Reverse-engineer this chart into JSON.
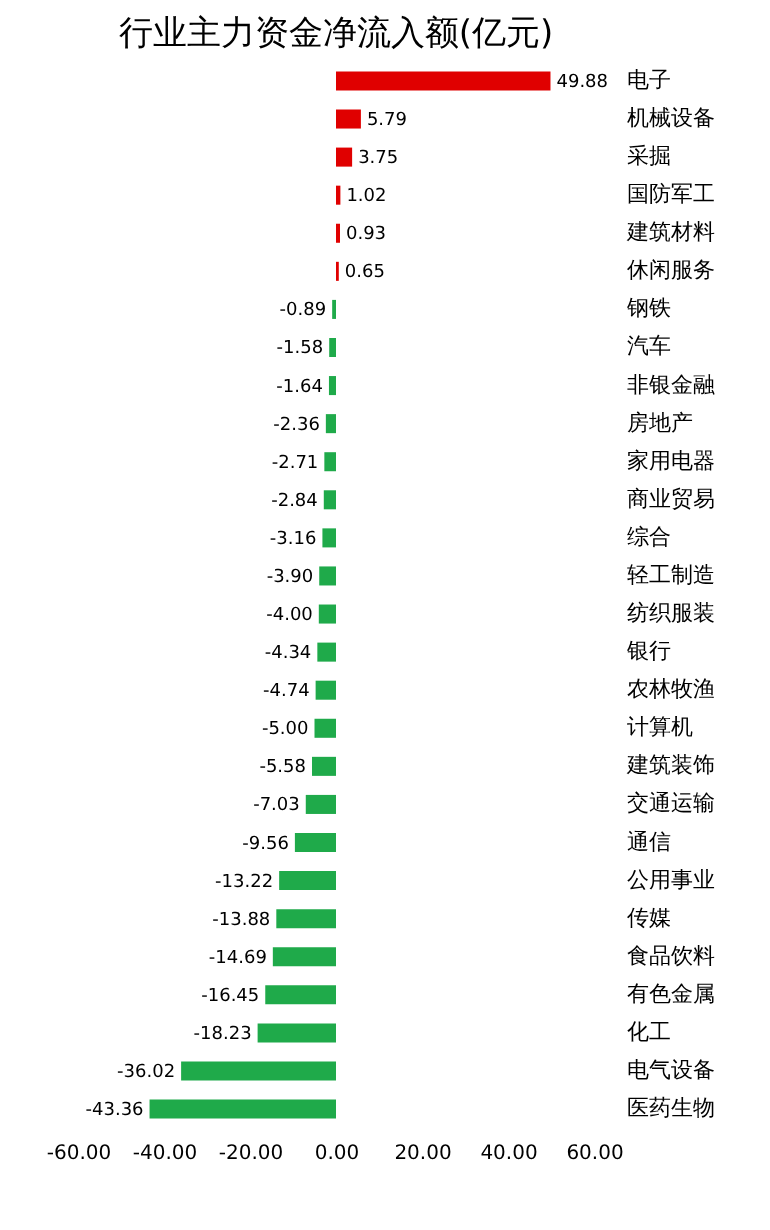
{
  "chart_data": {
    "type": "bar",
    "orientation": "horizontal",
    "title": "行业主力资金净流入额(亿元)",
    "categories": [
      "电子",
      "机械设备",
      "采掘",
      "国防军工",
      "建筑材料",
      "休闲服务",
      "钢铁",
      "汽车",
      "非银金融",
      "房地产",
      "家用电器",
      "商业贸易",
      "综合",
      "轻工制造",
      "纺织服装",
      "银行",
      "农林牧渔",
      "计算机",
      "建筑装饰",
      "交通运输",
      "通信",
      "公用事业",
      "传媒",
      "食品饮料",
      "有色金属",
      "化工",
      "电气设备",
      "医药生物"
    ],
    "values": [
      49.88,
      5.79,
      3.75,
      1.02,
      0.93,
      0.65,
      -0.89,
      -1.58,
      -1.64,
      -2.36,
      -2.71,
      -2.84,
      -3.16,
      -3.9,
      -4.0,
      -4.34,
      -4.74,
      -5.0,
      -5.58,
      -7.03,
      -9.56,
      -13.22,
      -13.88,
      -14.69,
      -16.45,
      -18.23,
      -36.02,
      -43.36
    ],
    "value_labels": [
      "49.88",
      "5.79",
      "3.75",
      "1.02",
      "0.93",
      "0.65",
      "-0.89",
      "-1.58",
      "-1.64",
      "-2.36",
      "-2.71",
      "-2.84",
      "-3.16",
      "-3.90",
      "-4.00",
      "-4.34",
      "-4.74",
      "-5.00",
      "-5.58",
      "-7.03",
      "-9.56",
      "-13.22",
      "-13.88",
      "-14.69",
      "-16.45",
      "-18.23",
      "-36.02",
      "-43.36"
    ],
    "colors": [
      "#e00000",
      "#e00000",
      "#e00000",
      "#e00000",
      "#e00000",
      "#e00000",
      "#1faa4a",
      "#1faa4a",
      "#1faa4a",
      "#1faa4a",
      "#1faa4a",
      "#1faa4a",
      "#1faa4a",
      "#1faa4a",
      "#1faa4a",
      "#1faa4a",
      "#1faa4a",
      "#1faa4a",
      "#1faa4a",
      "#1faa4a",
      "#1faa4a",
      "#1faa4a",
      "#1faa4a",
      "#1faa4a",
      "#1faa4a",
      "#1faa4a",
      "#1faa4a",
      "#1faa4a"
    ],
    "xlim": [
      -60,
      60
    ],
    "xticks": [
      {
        "value": -60,
        "label": "-60.00"
      },
      {
        "value": -40,
        "label": "-40.00"
      },
      {
        "value": -20,
        "label": "-20.00"
      },
      {
        "value": 0,
        "label": "0.00"
      },
      {
        "value": 20,
        "label": "20.00"
      },
      {
        "value": 40,
        "label": "40.00"
      },
      {
        "value": 60,
        "label": "60.00"
      }
    ]
  }
}
